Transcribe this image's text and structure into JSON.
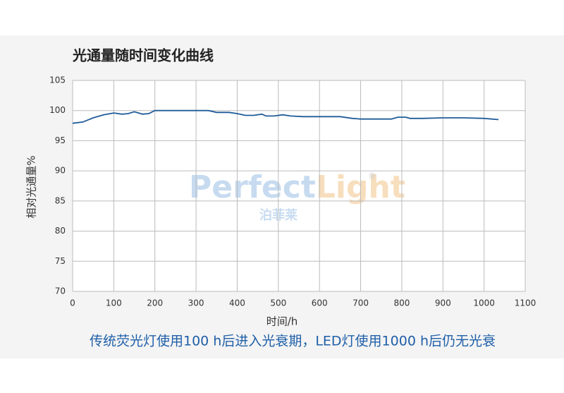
{
  "chart_data": {
    "type": "line",
    "title": "光通量随时间变化曲线",
    "xlabel": "时间/h",
    "ylabel": "相对光通量%",
    "caption": "传统荧光灯使用100 h后进入光衰期，LED灯使用1000 h后仍无光衰",
    "watermark": {
      "parts": [
        "Perfect",
        "Light"
      ],
      "mark": "®",
      "sub": "泊菲莱"
    },
    "x": [
      0,
      25,
      50,
      75,
      100,
      120,
      135,
      150,
      170,
      185,
      200,
      250,
      300,
      330,
      350,
      380,
      400,
      420,
      440,
      460,
      470,
      490,
      510,
      530,
      560,
      600,
      650,
      680,
      700,
      750,
      775,
      790,
      810,
      820,
      850,
      900,
      950,
      1000,
      1035
    ],
    "values": [
      97.9,
      98.1,
      98.8,
      99.3,
      99.6,
      99.4,
      99.5,
      99.8,
      99.4,
      99.5,
      100,
      100,
      100,
      100,
      99.7,
      99.7,
      99.5,
      99.2,
      99.2,
      99.4,
      99.1,
      99.1,
      99.3,
      99.1,
      99.0,
      99.0,
      99.0,
      98.7,
      98.6,
      98.6,
      98.6,
      98.9,
      98.9,
      98.7,
      98.7,
      98.8,
      98.8,
      98.7,
      98.5
    ],
    "color": "#1f5c99",
    "xlim": [
      0,
      1100
    ],
    "xticks": [
      0,
      100,
      200,
      300,
      400,
      500,
      600,
      700,
      800,
      900,
      1000,
      1100
    ],
    "ylim": [
      70,
      105
    ],
    "yticks": [
      70,
      75,
      80,
      85,
      90,
      95,
      100,
      105
    ],
    "grid": true
  }
}
